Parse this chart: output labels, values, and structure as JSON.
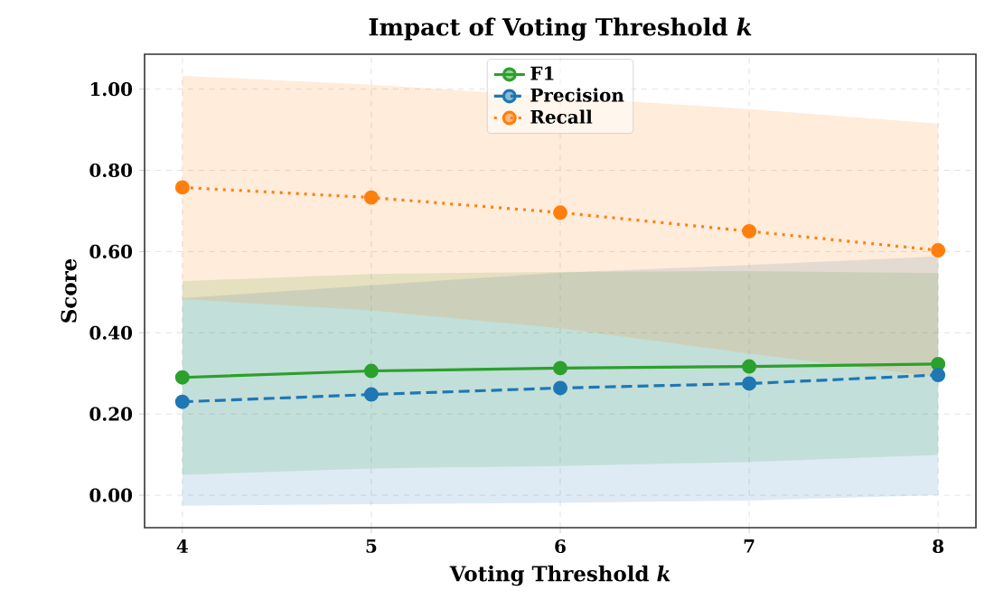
{
  "chart_data": {
    "type": "line",
    "title": "Impact of Voting Threshold *k*",
    "xlabel": "Voting Threshold *k*",
    "ylabel": "Score",
    "x": [
      4,
      5,
      6,
      7,
      8
    ],
    "xlim": [
      3.8,
      8.2
    ],
    "xticks": [
      4,
      5,
      6,
      7,
      8
    ],
    "ylim": [
      -0.08,
      1.086
    ],
    "yticks": [
      {
        "value": 0,
        "label": "0.00"
      },
      {
        "value": 0.2,
        "label": "0.20"
      },
      {
        "value": 0.4,
        "label": "0.40"
      },
      {
        "value": 0.6,
        "label": "0.60"
      },
      {
        "value": 0.8,
        "label": "0.80"
      },
      {
        "value": 1.0,
        "label": "1.00"
      }
    ],
    "grid": true,
    "legend": "top",
    "marker": "circle",
    "series": [
      {
        "name": "F1",
        "color": "#2ca02c",
        "line_style": "solid",
        "values": [
          0.29,
          0.306,
          0.313,
          0.317,
          0.323
        ],
        "lower": [
          0.05,
          0.066,
          0.072,
          0.082,
          0.099
        ],
        "upper": [
          0.527,
          0.545,
          0.55,
          0.552,
          0.547
        ]
      },
      {
        "name": "Precision",
        "color": "#1f77b4",
        "line_style": "dashed",
        "values": [
          0.23,
          0.248,
          0.264,
          0.275,
          0.296
        ],
        "lower": [
          -0.026,
          -0.022,
          -0.019,
          -0.013,
          0.0
        ],
        "upper": [
          0.485,
          0.517,
          0.548,
          0.567,
          0.588
        ]
      },
      {
        "name": "Recall",
        "color": "#ff7f0e",
        "line_style": "dotted",
        "values": [
          0.758,
          0.733,
          0.696,
          0.65,
          0.603
        ],
        "lower": [
          0.483,
          0.455,
          0.411,
          0.349,
          0.291
        ],
        "upper": [
          1.033,
          1.011,
          0.981,
          0.951,
          0.915
        ]
      }
    ]
  }
}
